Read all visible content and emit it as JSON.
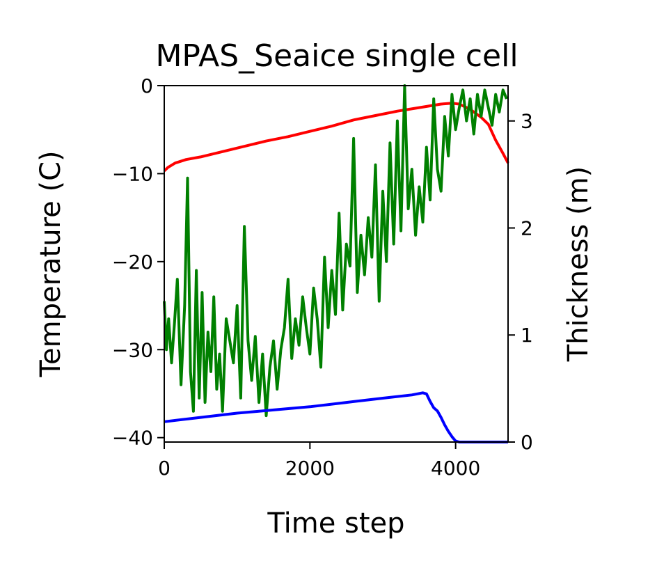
{
  "chart_data": {
    "type": "line",
    "title": "MPAS_Seaice single cell",
    "xlabel": "Time step",
    "ylabel": "Temperature (C)",
    "y2label": "Thickness (m)",
    "xlim": [
      0,
      4720
    ],
    "ylim": [
      -40.5,
      0
    ],
    "y2lim": [
      0,
      3.33
    ],
    "xticks": [
      0,
      2000,
      4000
    ],
    "yticks": [
      -40,
      -30,
      -20,
      -10,
      0
    ],
    "y2ticks": [
      0,
      1,
      2,
      3
    ],
    "grid": false,
    "series": [
      {
        "axis": "left",
        "color": "#ff0000",
        "x": [
          0,
          50,
          150,
          300,
          500,
          800,
          1100,
          1400,
          1700,
          2000,
          2300,
          2600,
          2900,
          3200,
          3500,
          3800,
          3950,
          4050,
          4200,
          4350,
          4450,
          4550,
          4650,
          4720
        ],
        "y": [
          -9.7,
          -9.3,
          -8.8,
          -8.4,
          -8.1,
          -7.5,
          -6.9,
          -6.3,
          -5.8,
          -5.2,
          -4.6,
          -3.9,
          -3.4,
          -2.9,
          -2.5,
          -2.1,
          -2.0,
          -2.1,
          -2.7,
          -3.6,
          -4.4,
          -6.2,
          -7.7,
          -8.8
        ]
      },
      {
        "axis": "left",
        "color": "#008000",
        "x": [
          0,
          30,
          60,
          100,
          140,
          180,
          230,
          280,
          320,
          360,
          400,
          440,
          480,
          520,
          560,
          600,
          640,
          680,
          720,
          760,
          800,
          850,
          900,
          950,
          1000,
          1050,
          1100,
          1150,
          1200,
          1250,
          1300,
          1350,
          1400,
          1450,
          1500,
          1550,
          1600,
          1650,
          1700,
          1750,
          1800,
          1850,
          1900,
          1950,
          2000,
          2050,
          2100,
          2150,
          2200,
          2250,
          2300,
          2350,
          2400,
          2450,
          2500,
          2550,
          2600,
          2650,
          2700,
          2750,
          2800,
          2850,
          2900,
          2950,
          3000,
          3050,
          3100,
          3150,
          3200,
          3250,
          3300,
          3350,
          3400,
          3450,
          3500,
          3550,
          3600,
          3650,
          3700,
          3750,
          3800,
          3850,
          3900,
          3950,
          4000,
          4050,
          4100,
          4150,
          4200,
          4250,
          4300,
          4350,
          4400,
          4450,
          4500,
          4550,
          4600,
          4650,
          4700
        ],
        "y": [
          -24.5,
          -30.0,
          -26.5,
          -31.5,
          -27.0,
          -22.0,
          -34.0,
          -25.0,
          -10.5,
          -32.5,
          -37.0,
          -21.0,
          -35.5,
          -23.5,
          -36.0,
          -28.0,
          -32.5,
          -24.0,
          -34.5,
          -30.5,
          -37.0,
          -26.5,
          -29.0,
          -31.5,
          -25.0,
          -35.5,
          -16.0,
          -29.0,
          -33.5,
          -28.5,
          -36.0,
          -30.5,
          -37.5,
          -32.0,
          -29.0,
          -34.5,
          -30.0,
          -27.5,
          -22.0,
          -31.0,
          -26.5,
          -29.5,
          -24.0,
          -27.5,
          -30.5,
          -23.0,
          -26.5,
          -32.0,
          -19.5,
          -27.5,
          -21.0,
          -26.0,
          -14.5,
          -25.5,
          -18.0,
          -20.5,
          -6.0,
          -23.5,
          -17.0,
          -21.5,
          -15.0,
          -19.5,
          -9.0,
          -24.5,
          -12.0,
          -20.0,
          -6.5,
          -18.0,
          -4.0,
          -16.5,
          0,
          -14.0,
          -9.5,
          -17.0,
          -11.5,
          -15.5,
          -7.0,
          -13.0,
          -1.5,
          -9.5,
          -12.0,
          -3.5,
          -8.0,
          -1.0,
          -5.0,
          -2.5,
          -0.5,
          -4.0,
          -1.5,
          -5.5,
          -1.0,
          -3.5,
          -0.5,
          -2.5,
          -4.5,
          -1.0,
          -3.0,
          -0.5,
          -1.5
        ]
      },
      {
        "axis": "right",
        "color": "#0000ff",
        "x": [
          0,
          500,
          1000,
          1500,
          2000,
          2500,
          3000,
          3400,
          3550,
          3600,
          3650,
          3700,
          3750,
          3800,
          3850,
          3900,
          3950,
          4000,
          4050,
          4200,
          4720
        ],
        "y": [
          0.19,
          0.23,
          0.27,
          0.3,
          0.33,
          0.37,
          0.41,
          0.44,
          0.46,
          0.45,
          0.38,
          0.32,
          0.29,
          0.23,
          0.16,
          0.1,
          0.05,
          0.01,
          0.0,
          0.0,
          0.0
        ]
      }
    ]
  }
}
